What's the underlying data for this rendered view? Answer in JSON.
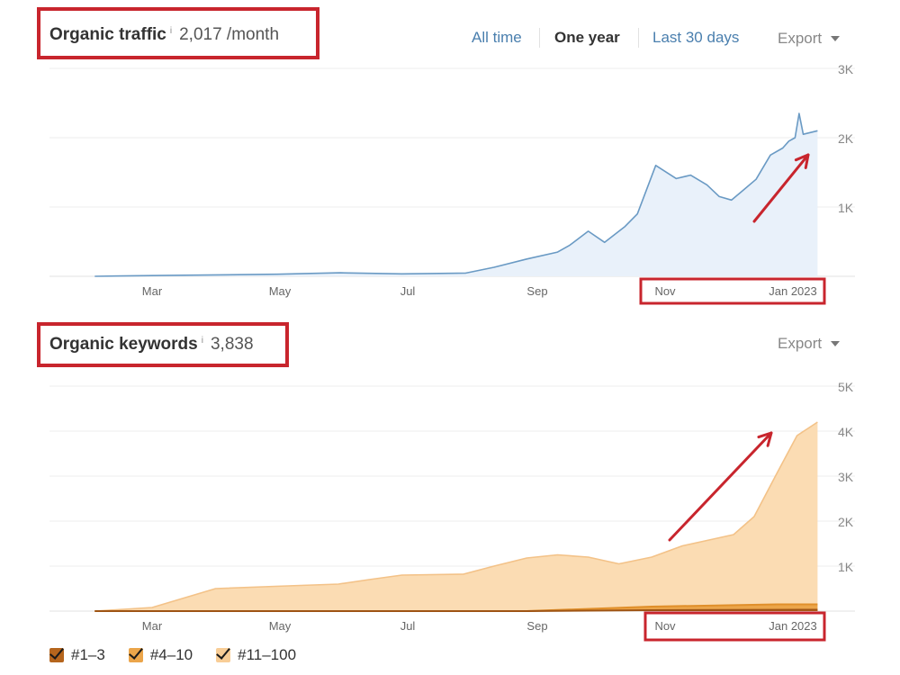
{
  "traffic_panel": {
    "title": "Organic traffic",
    "info_symbol": "i",
    "value": "2,017 /month",
    "tabs": [
      {
        "label": "All time",
        "active": false
      },
      {
        "label": "One year",
        "active": true
      },
      {
        "label": "Last 30 days",
        "active": false
      }
    ],
    "export_label": "Export",
    "line_color": "#6a9ac4",
    "fill_color": "#e9f1fa"
  },
  "keywords_panel": {
    "title": "Organic keywords",
    "info_symbol": "i",
    "value": "3,838",
    "export_label": "Export"
  },
  "annotation_color": "#c8252d",
  "legend": [
    {
      "label": "#1–3",
      "color": "#b5651d",
      "checked": true
    },
    {
      "label": "#4–10",
      "color": "#eba54a",
      "checked": true
    },
    {
      "label": "#11–100",
      "color": "#f8cd96",
      "checked": true
    }
  ],
  "chart_data": [
    {
      "type": "area",
      "title": "Organic traffic",
      "x_tick_labels": [
        "Mar",
        "May",
        "Jul",
        "Sep",
        "Nov",
        "Jan 2023"
      ],
      "y_tick_labels": [
        "1K",
        "2K",
        "3K"
      ],
      "ylim": [
        0,
        3000
      ],
      "xlim": [
        "2022-02-01",
        "2023-01-31"
      ],
      "grid": true,
      "series": [
        {
          "x": [
            "2022-02-01",
            "2022-03-01",
            "2022-05-01",
            "2022-06-01",
            "2022-07-01",
            "2022-07-15",
            "2022-08-01",
            "2022-08-15",
            "2022-08-31",
            "2022-09-15",
            "2022-09-21",
            "2022-09-30",
            "2022-10-08",
            "2022-10-18",
            "2022-10-24",
            "2022-11-02",
            "2022-11-12",
            "2022-11-19",
            "2022-11-27",
            "2022-12-03",
            "2022-12-09",
            "2022-12-15",
            "2022-12-21",
            "2022-12-25",
            "2022-12-28",
            "2023-01-03",
            "2023-01-06",
            "2023-01-09",
            "2023-01-11",
            "2023-01-13",
            "2023-01-20"
          ],
          "y": [
            0,
            10,
            30,
            50,
            35,
            40,
            45,
            130,
            250,
            350,
            450,
            650,
            490,
            720,
            900,
            1600,
            1410,
            1460,
            1320,
            1150,
            1100,
            1250,
            1400,
            1600,
            1750,
            1850,
            1950,
            2000,
            2350,
            2050,
            2100
          ]
        }
      ]
    },
    {
      "type": "area",
      "title": "Organic keywords",
      "x_tick_labels": [
        "Mar",
        "May",
        "Jul",
        "Sep",
        "Nov",
        "Jan 2023"
      ],
      "y_tick_labels": [
        "1K",
        "2K",
        "3K",
        "4K",
        "5K"
      ],
      "ylim": [
        0,
        5000
      ],
      "xlim": [
        "2022-02-01",
        "2023-01-31"
      ],
      "grid": true,
      "series": [
        {
          "name": "#11–100",
          "x": [
            "2022-02-01",
            "2022-03-01",
            "2022-04-01",
            "2022-04-30",
            "2022-05-31",
            "2022-06-15",
            "2022-07-01",
            "2022-07-31",
            "2022-08-15",
            "2022-08-31",
            "2022-09-15",
            "2022-09-30",
            "2022-10-15",
            "2022-10-31",
            "2022-11-15",
            "2022-11-30",
            "2022-12-10",
            "2022-12-20",
            "2022-12-31",
            "2023-01-10",
            "2023-01-15",
            "2023-01-20"
          ],
          "y": [
            0,
            80,
            500,
            550,
            600,
            700,
            800,
            820,
            1000,
            1180,
            1250,
            1200,
            1050,
            1200,
            1450,
            1600,
            1700,
            2100,
            3050,
            3900,
            4050,
            4200
          ]
        },
        {
          "name": "#4–10",
          "x": [
            "2022-02-01",
            "2022-08-31",
            "2022-10-31",
            "2022-12-31",
            "2023-01-20"
          ],
          "y": [
            0,
            0,
            100,
            150,
            150
          ]
        },
        {
          "name": "#1–3",
          "x": [
            "2022-02-01",
            "2022-08-31",
            "2022-10-31",
            "2023-01-20"
          ],
          "y": [
            0,
            0,
            20,
            30
          ]
        }
      ]
    }
  ]
}
